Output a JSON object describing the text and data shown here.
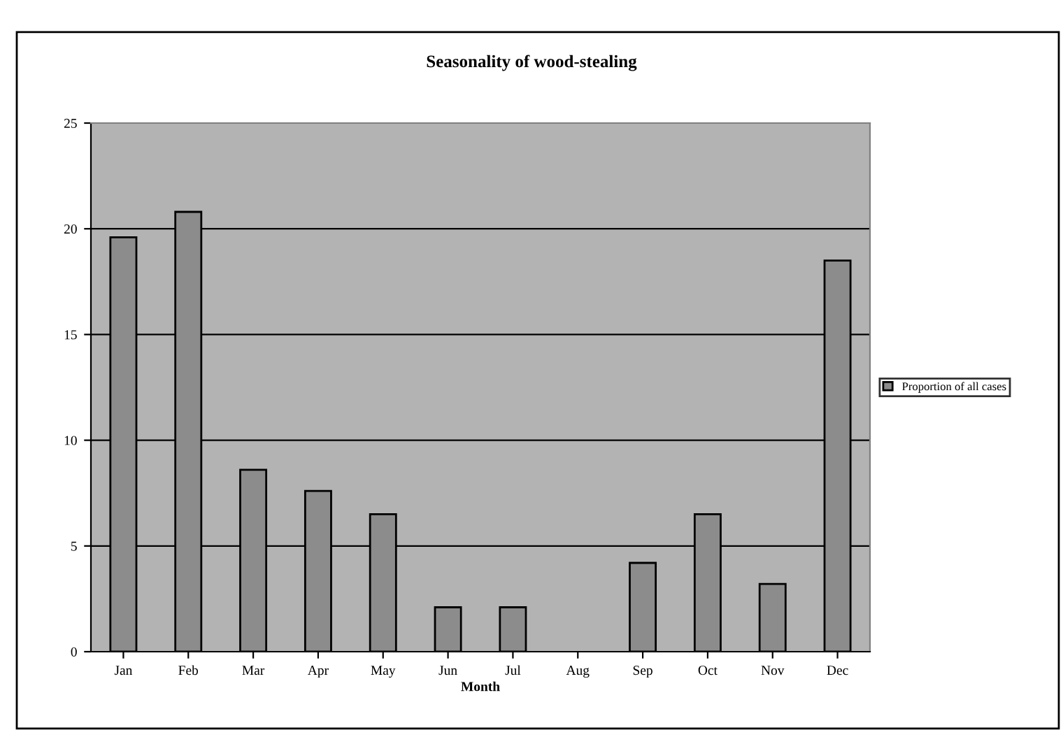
{
  "chart_data": {
    "type": "bar",
    "title": "Seasonality of wood-stealing",
    "xlabel": "Month",
    "categories": [
      "Jan",
      "Feb",
      "Mar",
      "Apr",
      "May",
      "Jun",
      "Jul",
      "Aug",
      "Sep",
      "Oct",
      "Nov",
      "Dec"
    ],
    "series": [
      {
        "name": "Proportion of all cases",
        "color": "#8c8c8c",
        "values": [
          19.6,
          20.8,
          8.6,
          7.6,
          6.5,
          2.1,
          2.1,
          null,
          4.2,
          6.5,
          3.2,
          18.5
        ]
      }
    ],
    "ylim": [
      0,
      25
    ],
    "yticks": [
      0,
      5,
      10,
      15,
      20,
      25
    ],
    "grid": "y",
    "legend": "right"
  }
}
